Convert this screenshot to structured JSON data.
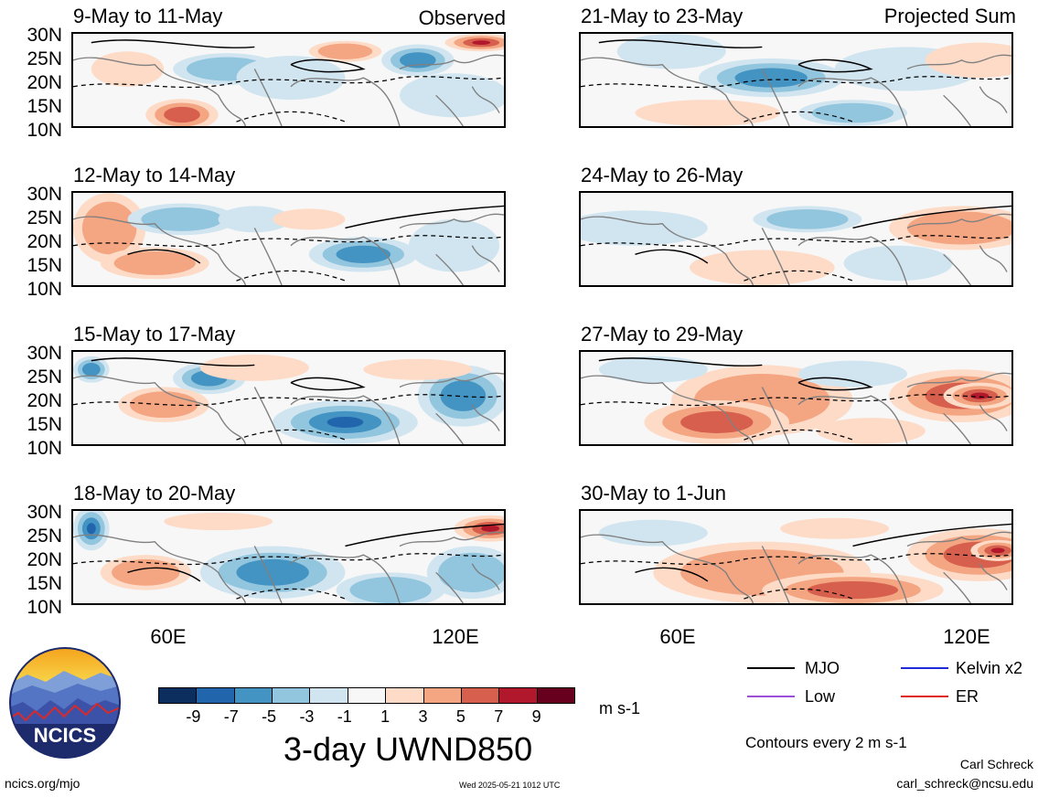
{
  "panels_left": [
    {
      "title": "9-May to 11-May",
      "label": "Observed"
    },
    {
      "title": "12-May to 14-May"
    },
    {
      "title": "15-May to 17-May"
    },
    {
      "title": "18-May to 20-May"
    }
  ],
  "panels_right": [
    {
      "title": "21-May to 23-May",
      "label": "Projected Sum"
    },
    {
      "title": "24-May to 26-May"
    },
    {
      "title": "27-May to 29-May"
    },
    {
      "title": "30-May to 1-Jun"
    }
  ],
  "lat_labels": [
    "30N",
    "25N",
    "20N",
    "15N",
    "10N"
  ],
  "lon_labels": [
    "60E",
    "120E"
  ],
  "legend": {
    "mjo": "MJO",
    "kelvin": "Kelvin x2",
    "low": "Low",
    "er": "ER",
    "mjo_color": "#000000",
    "kelvin_color": "#1f2bd8",
    "low_color": "#9b4fd6",
    "er_color": "#e0201c"
  },
  "colorbar": {
    "unit": "m s-1",
    "ticks": [
      "-9",
      "-7",
      "-5",
      "-3",
      "-1",
      "1",
      "3",
      "5",
      "7",
      "9"
    ],
    "colors": [
      "#0b2e5e",
      "#2166ac",
      "#4393c3",
      "#92c5de",
      "#d1e5f0",
      "#f7f7f7",
      "#fddbc7",
      "#f4a582",
      "#d6604d",
      "#b2182b",
      "#67001f"
    ]
  },
  "main_title": "3-day UWND850",
  "contours_note": "Contours every 2 m s-1",
  "author": "Carl Schreck",
  "email": "carl_schreck@ncsu.edu",
  "site": "ncics.org/mjo",
  "timestamp": "Wed 2025-05-21 1012 UTC",
  "logo_text": "NCICS"
}
